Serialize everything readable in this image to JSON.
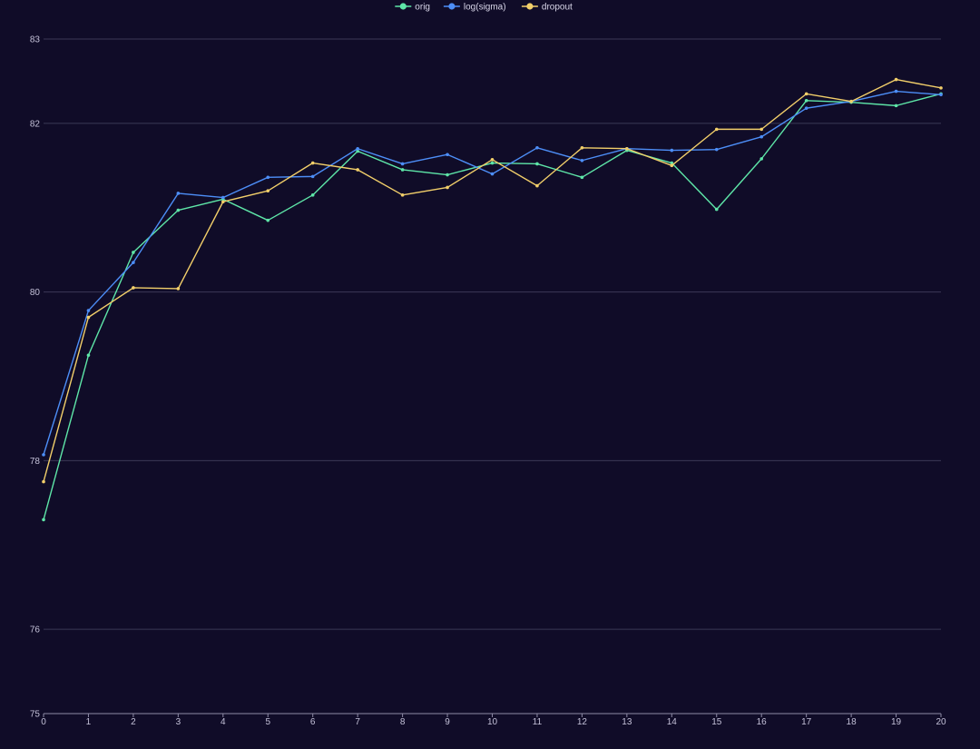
{
  "chart_data": {
    "type": "line",
    "title": "",
    "xlabel": "",
    "ylabel": "",
    "x": [
      0,
      1,
      2,
      3,
      4,
      5,
      6,
      7,
      8,
      9,
      10,
      11,
      12,
      13,
      14,
      15,
      16,
      17,
      18,
      19,
      20
    ],
    "xlim": [
      0,
      20
    ],
    "ylim": [
      75,
      83
    ],
    "x_ticks": [
      "0",
      "1",
      "2",
      "3",
      "4",
      "5",
      "6",
      "7",
      "8",
      "9",
      "10",
      "11",
      "12",
      "13",
      "14",
      "15",
      "16",
      "17",
      "18",
      "19",
      "20"
    ],
    "y_ticks": [
      {
        "value": 75,
        "label": "75"
      },
      {
        "value": 76,
        "label": "76"
      },
      {
        "value": 78,
        "label": "78"
      },
      {
        "value": 80,
        "label": "80"
      },
      {
        "value": 82,
        "label": "82"
      },
      {
        "value": 83,
        "label": "83"
      }
    ],
    "grid": true,
    "legend_position": "top-center",
    "series": [
      {
        "name": "orig",
        "color": "#5ee6a8",
        "values": [
          77.3,
          79.25,
          80.47,
          80.97,
          81.1,
          80.85,
          81.15,
          81.67,
          81.45,
          81.39,
          81.53,
          81.52,
          81.36,
          81.68,
          81.53,
          80.98,
          81.58,
          82.27,
          82.25,
          82.21,
          82.35
        ]
      },
      {
        "name": "log(sigma)",
        "color": "#4d8ef7",
        "values": [
          78.07,
          79.78,
          80.35,
          81.17,
          81.12,
          81.36,
          81.37,
          81.7,
          81.52,
          81.63,
          81.4,
          81.71,
          81.56,
          81.7,
          81.68,
          81.69,
          81.84,
          82.18,
          82.26,
          82.38,
          82.34
        ]
      },
      {
        "name": "dropout",
        "color": "#f2cf6a",
        "values": [
          77.75,
          79.7,
          80.05,
          80.04,
          81.07,
          81.2,
          81.53,
          81.45,
          81.15,
          81.24,
          81.57,
          81.26,
          81.71,
          81.7,
          81.5,
          81.93,
          81.93,
          82.35,
          82.26,
          82.52,
          82.42
        ]
      }
    ]
  }
}
